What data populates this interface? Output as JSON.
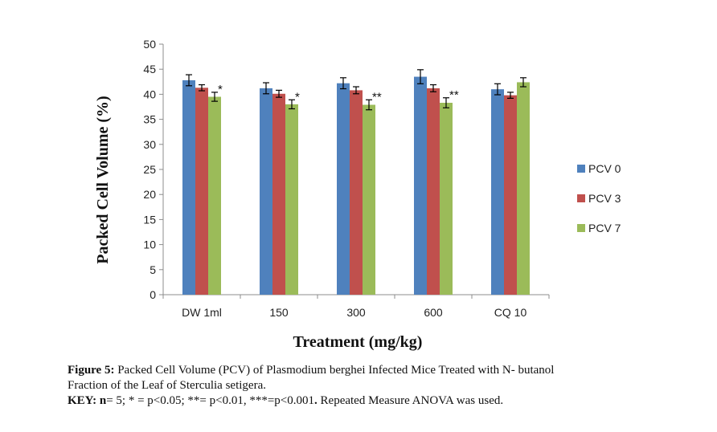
{
  "chart_data": {
    "type": "bar",
    "categories": [
      "DW 1ml",
      "150",
      "300",
      "600",
      "CQ 10"
    ],
    "series": [
      {
        "name": "PCV 0",
        "color": "#4F81BD",
        "values": [
          42.8,
          41.2,
          42.2,
          43.5,
          41.0
        ],
        "errors": [
          1.1,
          1.1,
          1.1,
          1.4,
          1.1
        ]
      },
      {
        "name": "PCV 3",
        "color": "#C0504D",
        "values": [
          41.3,
          40.1,
          40.8,
          41.2,
          39.8
        ],
        "errors": [
          0.6,
          0.7,
          0.7,
          0.7,
          0.6
        ]
      },
      {
        "name": "PCV 7",
        "color": "#9BBB59",
        "values": [
          39.5,
          38.0,
          37.9,
          38.3,
          42.4
        ],
        "errors": [
          0.9,
          0.9,
          1.0,
          1.0,
          0.9
        ]
      }
    ],
    "significance": [
      {
        "category": "DW 1ml",
        "series": "PCV 7",
        "label": "*"
      },
      {
        "category": "150",
        "series": "PCV 7",
        "label": "*"
      },
      {
        "category": "300",
        "series": "PCV 7",
        "label": "**"
      },
      {
        "category": "600",
        "series": "PCV 7",
        "label": "**"
      }
    ],
    "xlabel": "Treatment  (mg/kg)",
    "ylabel": "Packed Cell Volume  (%)",
    "ylim": [
      0,
      50
    ],
    "yticks": [
      0,
      5,
      10,
      15,
      20,
      25,
      30,
      35,
      40,
      45,
      50
    ],
    "grid": false,
    "legend": "right"
  },
  "caption": {
    "figure_label": "Figure 5:",
    "figure_text": " Packed Cell Volume (PCV) of Plasmodium berghei Infected Mice Treated with N- butanol",
    "figure_text_line2": "Fraction of the Leaf of Sterculia setigera.",
    "key_label": "KEY:",
    "key_n_label": " n",
    "key_text": "= 5; * = p<0.05; **= p<0.01, ***=p<0.001",
    "key_dot": ".",
    "key_tail": " Repeated Measure ANOVA was used."
  }
}
